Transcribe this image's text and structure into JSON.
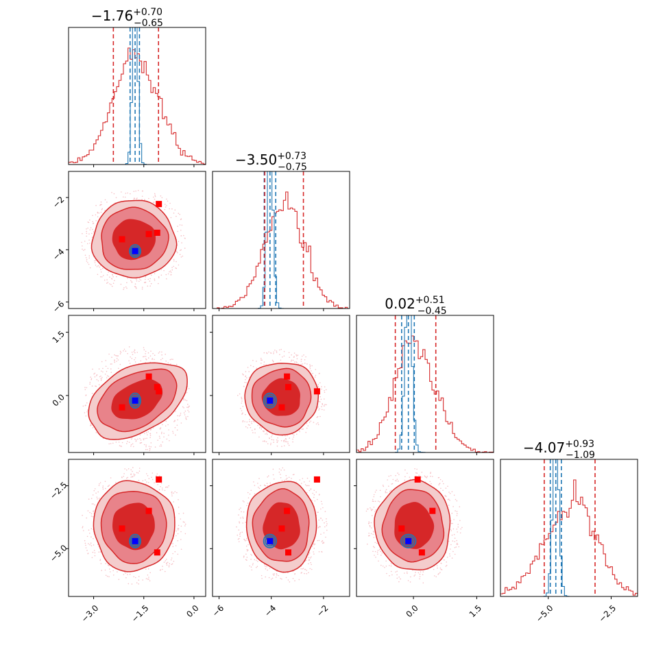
{
  "chart_data": {
    "type": "corner",
    "parameters": [
      {
        "title_value": "−1.76",
        "title_plus": "+0.70",
        "title_minus": "−0.65",
        "range": [
          -3.75,
          0.35
        ],
        "ticks": [
          -3.0,
          -1.5,
          0.0
        ],
        "tick_labels": [
          "−3.0",
          "−1.5",
          "0.0"
        ],
        "broad": {
          "median": -1.76,
          "q16": -2.41,
          "q84": -1.06
        },
        "narrow": {
          "median": -1.76,
          "q16": -1.91,
          "q84": -1.63,
          "sigma": 0.075
        }
      },
      {
        "title_value": "−3.50",
        "title_plus": "+0.73",
        "title_minus": "−0.75",
        "range": [
          -6.25,
          -1.0
        ],
        "ticks": [
          -6,
          -4,
          -2
        ],
        "tick_labels": [
          "−6",
          "−4",
          "−2"
        ],
        "broad": {
          "median": -3.5,
          "q16": -4.25,
          "q84": -2.77
        },
        "narrow": {
          "median": -4.05,
          "q16": -4.27,
          "q84": -3.83,
          "sigma": 0.11
        }
      },
      {
        "title_value": "0.02",
        "title_plus": "+0.51",
        "title_minus": "−0.45",
        "range": [
          -1.35,
          1.9
        ],
        "ticks": [
          0.0,
          1.5
        ],
        "tick_labels": [
          "0.0",
          "1.5"
        ],
        "y_ticks": [
          1.5,
          0.0
        ],
        "y_tick_labels": [
          "1.5",
          "0.0"
        ],
        "broad": {
          "median": 0.02,
          "q16": -0.43,
          "q84": 0.53
        },
        "narrow": {
          "median": -0.12,
          "q16": -0.28,
          "q84": 0.02,
          "sigma": 0.08
        }
      },
      {
        "title_value": "−4.07",
        "title_plus": "+0.93",
        "title_minus": "−1.09",
        "range": [
          -6.9,
          -1.45
        ],
        "ticks": [
          -5.0,
          -2.5
        ],
        "tick_labels": [
          "−5.0",
          "−2.5"
        ],
        "y_ticks": [
          -2.5,
          -5.0
        ],
        "y_tick_labels": [
          "−2.5",
          "−5.0"
        ],
        "broad": {
          "median": -4.07,
          "q16": -5.16,
          "q84": -3.14
        },
        "narrow": {
          "median": -4.7,
          "q16": -4.92,
          "q84": -4.48,
          "sigma": 0.12
        }
      }
    ],
    "pairs": [
      {
        "x": 0,
        "y": 1,
        "center": [
          -1.8,
          -3.6
        ],
        "spread": [
          0.68,
          0.85
        ],
        "rho": 0.05,
        "blue_square": [
          -1.76,
          -4.05
        ],
        "red_squares": [
          [
            -2.15,
            -3.6
          ],
          [
            -1.35,
            -3.4
          ],
          [
            -1.1,
            -3.35
          ],
          [
            -1.05,
            -2.25
          ]
        ]
      },
      {
        "x": 0,
        "y": 2,
        "center": [
          -1.7,
          -0.1
        ],
        "spread": [
          0.7,
          0.55
        ],
        "rho": 0.55,
        "blue_square": [
          -1.76,
          -0.12
        ],
        "red_squares": [
          [
            -2.15,
            -0.28
          ],
          [
            -1.35,
            0.45
          ],
          [
            -1.1,
            0.2
          ],
          [
            -1.05,
            0.1
          ]
        ]
      },
      {
        "x": 0,
        "y": 3,
        "center": [
          -1.8,
          -4.1
        ],
        "spread": [
          0.68,
          1.0
        ],
        "rho": 0.0,
        "blue_square": [
          -1.76,
          -4.7
        ],
        "red_squares": [
          [
            -2.15,
            -4.2
          ],
          [
            -1.35,
            -3.5
          ],
          [
            -1.1,
            -5.15
          ],
          [
            -1.05,
            -2.25
          ]
        ]
      },
      {
        "x": 1,
        "y": 2,
        "center": [
          -3.6,
          -0.05
        ],
        "spread": [
          0.75,
          0.5
        ],
        "rho": 0.1,
        "blue_square": [
          -4.05,
          -0.12
        ],
        "red_squares": [
          [
            -3.6,
            -0.28
          ],
          [
            -3.4,
            0.45
          ],
          [
            -3.35,
            0.2
          ],
          [
            -2.25,
            0.1
          ]
        ]
      },
      {
        "x": 1,
        "y": 3,
        "center": [
          -3.6,
          -4.1
        ],
        "spread": [
          0.75,
          1.0
        ],
        "rho": 0.0,
        "blue_square": [
          -4.05,
          -4.7
        ],
        "red_squares": [
          [
            -3.6,
            -4.2
          ],
          [
            -3.4,
            -3.5
          ],
          [
            -3.35,
            -5.15
          ],
          [
            -2.25,
            -2.25
          ]
        ]
      },
      {
        "x": 2,
        "y": 3,
        "center": [
          0.0,
          -4.1
        ],
        "spread": [
          0.5,
          1.0
        ],
        "rho": 0.0,
        "blue_square": [
          -0.12,
          -4.7
        ],
        "red_squares": [
          [
            -0.28,
            -4.2
          ],
          [
            0.45,
            -3.5
          ],
          [
            0.2,
            -5.15
          ],
          [
            0.1,
            -2.25
          ]
        ]
      }
    ],
    "colors": {
      "broad": "#d62728",
      "narrow": "#1f77b4",
      "fill_outer": "#f4cccc",
      "fill_mid": "#e8838a",
      "fill_inner": "#d62728",
      "marker_true": "#0000ff",
      "marker_other": "#ff0000",
      "scatter": "#f6c0c5"
    }
  }
}
